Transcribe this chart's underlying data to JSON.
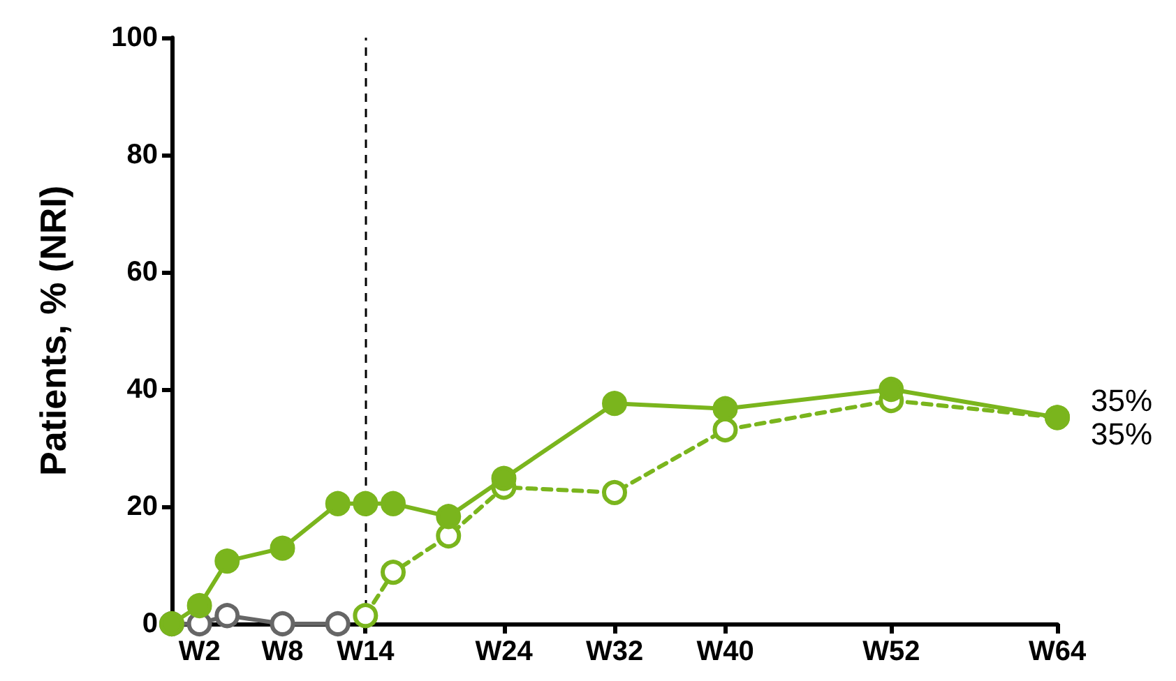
{
  "chart_data": {
    "type": "line",
    "ylabel": "Patients, % (NRI)",
    "categories": [
      null,
      null,
      "W2",
      null,
      null,
      null,
      null,
      null,
      "W8",
      null,
      null,
      null,
      null,
      null,
      "W14",
      null,
      null,
      null,
      null,
      null,
      null,
      null,
      null,
      null,
      "W24",
      null,
      null,
      null,
      null,
      null,
      null,
      null,
      "W32",
      null,
      null,
      null,
      null,
      null,
      null,
      null,
      "W40",
      null,
      null,
      null,
      null,
      null,
      null,
      null,
      null,
      null,
      null,
      null,
      "W52",
      null,
      null,
      null,
      null,
      null,
      null,
      null,
      null,
      null,
      null,
      null,
      "W64"
    ],
    "ylim": [
      0,
      100
    ],
    "yticks": [
      0,
      20,
      40,
      60,
      80,
      100
    ],
    "grid": false,
    "marker": "circle",
    "series": [
      {
        "color": "#7ab51d",
        "line_style": "solid",
        "values": [
          0,
          null,
          3.1,
          null,
          10.7,
          null,
          null,
          null,
          12.9,
          null,
          null,
          null,
          20.5,
          null,
          20.5,
          null,
          20.5,
          null,
          null,
          null,
          18.3,
          null,
          null,
          null,
          24.8,
          null,
          null,
          null,
          null,
          null,
          null,
          null,
          37.6,
          null,
          null,
          null,
          null,
          null,
          null,
          null,
          36.7,
          null,
          null,
          null,
          null,
          null,
          null,
          null,
          null,
          null,
          null,
          null,
          40,
          null,
          null,
          null,
          null,
          null,
          null,
          null,
          null,
          null,
          null,
          null,
          35.2
        ]
      },
      {
        "color": "#7ab51d",
        "line_style": "dashed",
        "values": [
          null,
          null,
          null,
          null,
          null,
          null,
          null,
          null,
          null,
          null,
          null,
          null,
          null,
          null,
          1.4,
          null,
          8.8,
          null,
          null,
          null,
          15,
          null,
          null,
          null,
          23.3,
          null,
          null,
          null,
          null,
          null,
          null,
          null,
          22.4,
          null,
          null,
          null,
          null,
          null,
          null,
          null,
          33.1,
          null,
          null,
          null,
          null,
          null,
          null,
          null,
          null,
          null,
          null,
          null,
          38.1,
          null,
          null,
          null,
          null,
          null,
          null,
          null,
          null,
          null,
          null,
          null,
          35.2
        ]
      },
      {
        "color": "#666666",
        "line_style": "solid",
        "values": [
          0,
          null,
          0,
          null,
          1.4,
          null,
          null,
          null,
          0,
          null,
          null,
          null,
          0,
          null,
          null,
          null,
          null,
          null,
          null,
          null,
          null,
          null,
          null,
          null,
          null,
          null,
          null,
          null,
          null,
          null,
          null,
          null,
          null,
          null,
          null,
          null,
          null,
          null,
          null,
          null,
          null,
          null,
          null,
          null,
          null,
          null,
          null,
          null,
          null,
          null,
          null,
          null,
          null,
          null,
          null,
          null,
          null,
          null,
          null,
          null,
          null,
          null,
          null,
          null,
          null
        ]
      }
    ],
    "ref_lines": [
      {
        "axis": "x",
        "value": "W14",
        "color": "#000000",
        "line_style": "dashed"
      }
    ],
    "annotations": [
      {
        "text": "35%",
        "x": "W64",
        "y": 35.2
      },
      {
        "text": "35%",
        "x": "W64",
        "y": 35.2
      }
    ]
  }
}
